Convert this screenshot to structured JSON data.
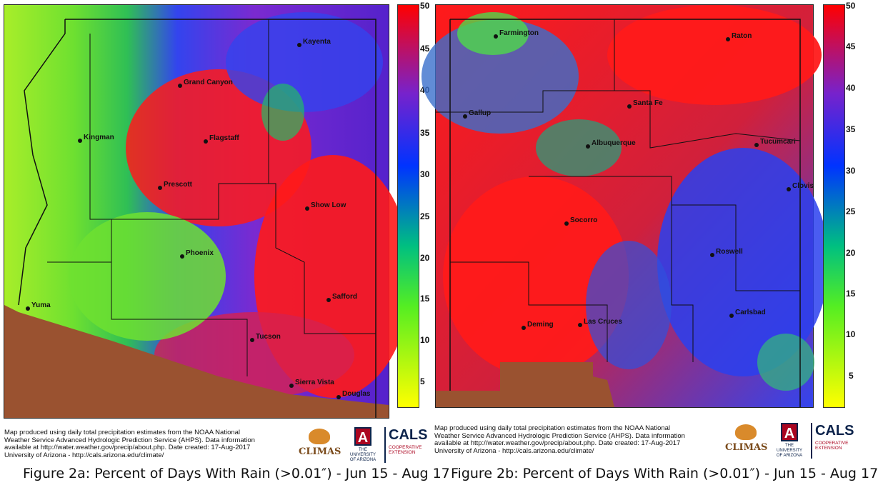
{
  "colorbar": {
    "ticks": [
      "50",
      "45",
      "40",
      "35",
      "30",
      "25",
      "20",
      "15",
      "10",
      "5"
    ],
    "min": 0,
    "max": 50,
    "colors": [
      "#ffff00",
      "#55ee22",
      "#00c080",
      "#0033ff",
      "#7722cc",
      "#ff0000"
    ]
  },
  "map_a": {
    "cities": [
      "Kayenta",
      "Grand Canyon",
      "Kingman",
      "Flagstaff",
      "Prescott",
      "Show Low",
      "Phoenix",
      "Yuma",
      "Safford",
      "Tucson",
      "Sierra Vista",
      "Douglas"
    ],
    "note": "Map produced using daily total precipitation estimates from the NOAA National\nWeather Service Advanced Hydrologic Prediction Service (AHPS). Data information\navailable at http://water.weather.gov/precip/about.php. Date created: 17-Aug-2017\nUniversity of Arizona - http://cals.arizona.edu/climate/",
    "caption": "Figure 2a: Percent of Days With Rain (>0.01″) - Jun 15 - Aug 17",
    "colors": {
      "dry": "#8dee22",
      "wet": "#ff1a1a",
      "mid": "#3344ee",
      "purple": "#7a2ad0",
      "mexico": "#9a5230"
    }
  },
  "map_b": {
    "cities": [
      "Farmington",
      "Raton",
      "Gallup",
      "Santa Fe",
      "Albuquerque",
      "Tucumcari",
      "Clovis",
      "Socorro",
      "Roswell",
      "Deming",
      "Las Cruces",
      "Carlsbad"
    ],
    "note": "Map produced using daily total precipitation estimates from the NOAA National\nWeather Service Advanced Hydrologic Prediction Service (AHPS). Data information\navailable at http://water.weather.gov/precip/about.php. Date created: 17-Aug-2017\nUniversity of Arizona - http://cals.arizona.edu/climate/",
    "caption": "Figure 2b: Percent of Days With Rain (>0.01″) - Jun 15 - Aug 17",
    "colors": {
      "dry": "#4fd84a",
      "wet": "#ff1a1a",
      "mid": "#3344ee",
      "purple": "#7a2ad0",
      "mexico": "#9a5230"
    }
  },
  "logos": {
    "climas": "CLIMAS",
    "ua": "A",
    "ua_text": "THE UNIVERSITY\nOF ARIZONA",
    "cals": "CALS",
    "cals_sub": "COOPERATIVE\nEXTENSION"
  }
}
